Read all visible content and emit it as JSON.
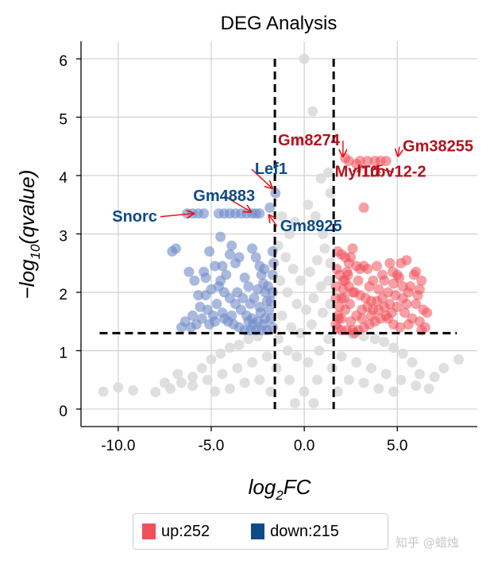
{
  "chart_data": {
    "type": "scatter",
    "title": "DEG Analysis",
    "xlabel_base": "log",
    "xlabel_sub": "2",
    "xlabel_tail": "FC",
    "ylabel_head": "−log",
    "ylabel_sub": "10",
    "ylabel_tail": "(qvalue)",
    "xlim": [
      -12,
      9.3
    ],
    "ylim": [
      -0.3,
      6.3
    ],
    "xticks": [
      -10,
      -5,
      0,
      5
    ],
    "xtick_labels": [
      "-10.0",
      "-5.0",
      "0.0",
      "5.0"
    ],
    "yticks": [
      0,
      1,
      2,
      3,
      4,
      5,
      6
    ],
    "ytick_labels": [
      "0",
      "1",
      "2",
      "3",
      "4",
      "5",
      "6"
    ],
    "grid": true,
    "fc_threshold": [
      -1.58,
      1.58
    ],
    "q_threshold_line": 1.3,
    "colors": {
      "up": "#f0505a",
      "down": "#6f8bc8",
      "ns": "#d9d9d9",
      "up_label": "#b3121f",
      "down_label": "#0d4a88",
      "arrow": "#e8151b"
    },
    "series": [
      {
        "name": "up",
        "count": 252,
        "points": [
          [
            1.7,
            1.45
          ],
          [
            1.8,
            1.6
          ],
          [
            1.9,
            1.75
          ],
          [
            2.0,
            1.9
          ],
          [
            2.1,
            2.05
          ],
          [
            2.2,
            2.2
          ],
          [
            2.3,
            2.35
          ],
          [
            2.4,
            2.5
          ],
          [
            2.5,
            2.6
          ],
          [
            2.6,
            2.75
          ],
          [
            2.8,
            2.45
          ],
          [
            3.0,
            2.4
          ],
          [
            3.2,
            2.45
          ],
          [
            3.4,
            2.4
          ],
          [
            1.8,
            2.7
          ],
          [
            2.0,
            2.65
          ],
          [
            2.2,
            2.6
          ],
          [
            1.75,
            2.4
          ],
          [
            1.9,
            2.3
          ],
          [
            2.1,
            2.2
          ],
          [
            2.4,
            2.1
          ],
          [
            2.7,
            2.0
          ],
          [
            3.0,
            1.95
          ],
          [
            3.3,
            1.9
          ],
          [
            3.6,
            1.85
          ],
          [
            3.9,
            1.85
          ],
          [
            4.2,
            1.9
          ],
          [
            4.5,
            2.0
          ],
          [
            4.8,
            2.15
          ],
          [
            5.0,
            2.3
          ],
          [
            5.2,
            2.5
          ],
          [
            5.5,
            2.55
          ],
          [
            6.0,
            2.35
          ],
          [
            6.3,
            2.2
          ],
          [
            5.7,
            2.1
          ],
          [
            5.3,
            1.9
          ],
          [
            5.0,
            1.75
          ],
          [
            4.7,
            1.65
          ],
          [
            4.4,
            1.6
          ],
          [
            4.1,
            1.55
          ],
          [
            3.8,
            1.5
          ],
          [
            3.5,
            1.45
          ],
          [
            3.2,
            1.4
          ],
          [
            2.9,
            1.35
          ],
          [
            2.6,
            1.35
          ],
          [
            2.3,
            1.35
          ],
          [
            2.0,
            1.35
          ],
          [
            1.8,
            1.38
          ],
          [
            2.5,
            1.5
          ],
          [
            2.8,
            1.6
          ],
          [
            3.1,
            1.7
          ],
          [
            3.4,
            1.75
          ],
          [
            3.7,
            1.7
          ],
          [
            4.0,
            1.7
          ],
          [
            4.3,
            1.75
          ],
          [
            4.6,
            1.8
          ],
          [
            5.4,
            1.65
          ],
          [
            5.8,
            1.55
          ],
          [
            6.2,
            1.5
          ],
          [
            6.6,
            1.65
          ],
          [
            6.0,
            1.8
          ],
          [
            5.6,
            2.0
          ],
          [
            4.6,
            2.5
          ],
          [
            3.0,
            4.25
          ],
          [
            3.4,
            4.25
          ],
          [
            3.8,
            4.25
          ],
          [
            4.1,
            4.25
          ],
          [
            4.4,
            4.25
          ],
          [
            2.4,
            4.25
          ],
          [
            2.2,
            4.3
          ],
          [
            2.8,
            4.2
          ],
          [
            3.2,
            3.45
          ],
          [
            2.9,
            2.2
          ],
          [
            3.5,
            2.1
          ],
          [
            4.0,
            2.05
          ],
          [
            1.7,
            2.1
          ],
          [
            1.7,
            1.9
          ],
          [
            2.0,
            1.55
          ],
          [
            2.2,
            1.7
          ],
          [
            2.45,
            1.8
          ],
          [
            2.6,
            2.0
          ],
          [
            3.9,
            2.45
          ],
          [
            5.1,
            2.25
          ],
          [
            4.9,
            1.95
          ],
          [
            5.5,
            1.8
          ],
          [
            6.4,
            1.7
          ],
          [
            6.1,
            1.95
          ],
          [
            2.35,
            2.3
          ],
          [
            2.15,
            1.9
          ],
          [
            1.85,
            1.55
          ],
          [
            4.3,
            2.2
          ],
          [
            3.7,
            2.2
          ],
          [
            4.2,
            2.3
          ],
          [
            4.75,
            2.35
          ],
          [
            5.3,
            2.1
          ],
          [
            6.2,
            2.05
          ],
          [
            5.9,
            2.3
          ],
          [
            2.7,
            1.3
          ],
          [
            3.1,
            1.55
          ],
          [
            3.6,
            1.6
          ],
          [
            4.5,
            1.55
          ],
          [
            4.8,
            1.45
          ],
          [
            5.15,
            1.4
          ],
          [
            5.6,
            1.45
          ],
          [
            6.3,
            1.35
          ],
          [
            6.5,
            1.4
          ]
        ]
      },
      {
        "name": "down",
        "count": 215,
        "points": [
          [
            -1.7,
            1.4
          ],
          [
            -1.8,
            1.55
          ],
          [
            -1.9,
            1.7
          ],
          [
            -2.0,
            1.85
          ],
          [
            -2.1,
            2.0
          ],
          [
            -2.2,
            2.15
          ],
          [
            -2.3,
            2.3
          ],
          [
            -2.4,
            2.45
          ],
          [
            -2.6,
            2.6
          ],
          [
            -2.8,
            2.75
          ],
          [
            -1.7,
            2.0
          ],
          [
            -1.7,
            2.3
          ],
          [
            -1.65,
            2.5
          ],
          [
            -1.7,
            2.7
          ],
          [
            -2.5,
            1.5
          ],
          [
            -2.8,
            1.55
          ],
          [
            -3.1,
            1.6
          ],
          [
            -3.4,
            1.7
          ],
          [
            -3.7,
            1.8
          ],
          [
            -4.0,
            1.9
          ],
          [
            -4.3,
            2.0
          ],
          [
            -4.5,
            2.2
          ],
          [
            -4.8,
            2.45
          ],
          [
            -5.1,
            2.7
          ],
          [
            -5.4,
            2.35
          ],
          [
            -5.0,
            2.05
          ],
          [
            -4.7,
            1.8
          ],
          [
            -4.4,
            1.65
          ],
          [
            -4.1,
            1.5
          ],
          [
            -3.8,
            1.45
          ],
          [
            -3.5,
            1.4
          ],
          [
            -3.2,
            1.35
          ],
          [
            -2.9,
            1.35
          ],
          [
            -2.6,
            1.35
          ],
          [
            -2.3,
            1.35
          ],
          [
            -2.0,
            1.35
          ],
          [
            -5.5,
            1.55
          ],
          [
            -5.8,
            1.45
          ],
          [
            -6.1,
            1.4
          ],
          [
            -6.0,
            1.6
          ],
          [
            -5.6,
            1.75
          ],
          [
            -5.3,
            1.95
          ],
          [
            -6.9,
            2.75
          ],
          [
            -7.1,
            2.7
          ],
          [
            -6.2,
            2.35
          ],
          [
            -5.9,
            2.2
          ],
          [
            -4.5,
            2.95
          ],
          [
            -3.9,
            2.8
          ],
          [
            -3.5,
            2.6
          ],
          [
            -3.2,
            2.25
          ],
          [
            -3.0,
            2.1
          ],
          [
            -2.7,
            1.9
          ],
          [
            -2.4,
            1.75
          ],
          [
            -4.2,
            2.3
          ],
          [
            -4.6,
            2.1
          ],
          [
            -3.6,
            2.0
          ],
          [
            -3.3,
            1.9
          ],
          [
            -2.9,
            1.8
          ],
          [
            -5.2,
            1.7
          ],
          [
            -4.9,
            1.6
          ],
          [
            -6.3,
            3.35
          ],
          [
            -6.0,
            3.35
          ],
          [
            -5.7,
            3.35
          ],
          [
            -5.4,
            3.35
          ],
          [
            -4.6,
            3.35
          ],
          [
            -4.3,
            3.35
          ],
          [
            -4.0,
            3.35
          ],
          [
            -3.7,
            3.35
          ],
          [
            -3.4,
            3.35
          ],
          [
            -3.1,
            3.35
          ],
          [
            -2.8,
            3.35
          ],
          [
            -2.6,
            3.35
          ],
          [
            -2.4,
            3.35
          ],
          [
            -1.55,
            3.7
          ],
          [
            -1.85,
            3.45
          ],
          [
            -2.1,
            1.55
          ],
          [
            -2.35,
            1.65
          ],
          [
            -1.8,
            1.85
          ],
          [
            -1.95,
            2.1
          ],
          [
            -2.15,
            2.4
          ],
          [
            -2.5,
            2.05
          ],
          [
            -3.7,
            2.5
          ],
          [
            -4.0,
            2.65
          ],
          [
            -4.4,
            2.45
          ],
          [
            -5.3,
            2.25
          ],
          [
            -5.7,
            1.95
          ],
          [
            -6.4,
            1.5
          ],
          [
            -6.6,
            1.4
          ],
          [
            -3.9,
            1.6
          ],
          [
            -4.3,
            1.55
          ],
          [
            -4.8,
            1.5
          ],
          [
            -5.1,
            1.45
          ],
          [
            -3.0,
            1.5
          ],
          [
            -2.75,
            1.45
          ],
          [
            -2.2,
            1.45
          ]
        ]
      },
      {
        "name": "ns",
        "points": [
          [
            0.0,
            6.0
          ],
          [
            0.45,
            5.1
          ],
          [
            -0.35,
            4.6
          ],
          [
            1.3,
            4.05
          ],
          [
            0.9,
            3.95
          ],
          [
            1.4,
            3.7
          ],
          [
            -1.2,
            3.3
          ],
          [
            0.2,
            3.5
          ],
          [
            -0.5,
            3.2
          ],
          [
            0.6,
            3.3
          ],
          [
            1.0,
            3.0
          ],
          [
            -0.8,
            3.0
          ],
          [
            -10.8,
            0.3
          ],
          [
            -10.0,
            0.37
          ],
          [
            -9.2,
            0.32
          ],
          [
            -8.0,
            0.29
          ],
          [
            -7.2,
            0.35
          ],
          [
            -6.6,
            0.45
          ],
          [
            -6.0,
            0.55
          ],
          [
            -5.5,
            0.7
          ],
          [
            -5.0,
            0.85
          ],
          [
            -4.5,
            0.95
          ],
          [
            -4.0,
            1.05
          ],
          [
            -3.5,
            1.1
          ],
          [
            -3.0,
            1.2
          ],
          [
            -2.5,
            1.25
          ],
          [
            8.3,
            0.85
          ],
          [
            6.7,
            0.35
          ],
          [
            6.2,
            0.6
          ],
          [
            5.8,
            0.8
          ],
          [
            5.3,
            0.95
          ],
          [
            4.8,
            1.05
          ],
          [
            4.3,
            1.15
          ],
          [
            3.8,
            1.2
          ],
          [
            3.2,
            1.25
          ],
          [
            2.6,
            1.28
          ],
          [
            -1.4,
            2.8
          ],
          [
            -1.0,
            2.6
          ],
          [
            -0.6,
            2.4
          ],
          [
            -0.2,
            2.2
          ],
          [
            0.3,
            2.35
          ],
          [
            0.7,
            2.55
          ],
          [
            1.1,
            2.75
          ],
          [
            1.4,
            2.5
          ],
          [
            -1.3,
            2.2
          ],
          [
            -0.9,
            2.0
          ],
          [
            -0.4,
            1.8
          ],
          [
            0.1,
            1.7
          ],
          [
            0.5,
            1.9
          ],
          [
            0.9,
            2.1
          ],
          [
            1.3,
            2.2
          ],
          [
            -1.2,
            1.6
          ],
          [
            -0.7,
            1.4
          ],
          [
            -0.2,
            1.3
          ],
          [
            0.4,
            1.45
          ],
          [
            1.0,
            1.65
          ],
          [
            1.4,
            1.8
          ],
          [
            -1.4,
            1.2
          ],
          [
            -0.9,
            1.0
          ],
          [
            -0.4,
            0.9
          ],
          [
            0.2,
            0.8
          ],
          [
            0.8,
            1.0
          ],
          [
            1.3,
            1.2
          ],
          [
            -1.5,
            0.7
          ],
          [
            -0.8,
            0.5
          ],
          [
            0.0,
            0.3
          ],
          [
            0.7,
            0.5
          ],
          [
            1.5,
            0.7
          ],
          [
            -2.0,
            0.9
          ],
          [
            -2.8,
            0.8
          ],
          [
            -3.6,
            0.7
          ],
          [
            -4.4,
            0.6
          ],
          [
            -5.2,
            0.5
          ],
          [
            -6.0,
            0.4
          ],
          [
            2.0,
            0.9
          ],
          [
            2.8,
            0.8
          ],
          [
            3.6,
            0.7
          ],
          [
            4.4,
            0.6
          ],
          [
            5.2,
            0.5
          ],
          [
            6.0,
            0.4
          ],
          [
            -2.4,
            0.5
          ],
          [
            -3.2,
            0.45
          ],
          [
            -4.0,
            0.35
          ],
          [
            -4.8,
            0.3
          ],
          [
            2.4,
            0.5
          ],
          [
            3.2,
            0.45
          ],
          [
            4.0,
            0.35
          ],
          [
            4.8,
            0.3
          ],
          [
            -1.8,
            0.3
          ],
          [
            1.8,
            0.3
          ],
          [
            -0.5,
            0.1
          ],
          [
            0.5,
            0.1
          ],
          [
            -7.5,
            0.45
          ],
          [
            -6.8,
            0.6
          ],
          [
            7.0,
            0.55
          ],
          [
            7.5,
            0.7
          ]
        ]
      }
    ],
    "annotations": [
      {
        "text": "Gm8274",
        "group": "up",
        "x": 2.25,
        "y": 4.27
      },
      {
        "text": "Gm38255",
        "group": "up",
        "x": 4.35,
        "y": 4.25
      },
      {
        "text": "Myl10",
        "group": "up",
        "x": 3.0,
        "y": 4.25
      },
      {
        "text": "Trbv12-2",
        "group": "up",
        "x": 3.6,
        "y": 4.25
      },
      {
        "text": "Lef1",
        "group": "down",
        "x": -1.55,
        "y": 3.7
      },
      {
        "text": "Gm4883",
        "group": "down",
        "x": -2.6,
        "y": 3.35
      },
      {
        "text": "Snorc",
        "group": "down",
        "x": -5.6,
        "y": 3.35
      },
      {
        "text": "Gm8925",
        "group": "down",
        "x": -2.15,
        "y": 3.35
      }
    ]
  },
  "legend": {
    "up_label": "up:252",
    "down_label": "down:215",
    "up_color": "#f0505a",
    "down_color": "#0d4a88"
  },
  "watermark": "知乎 @蜡烛"
}
